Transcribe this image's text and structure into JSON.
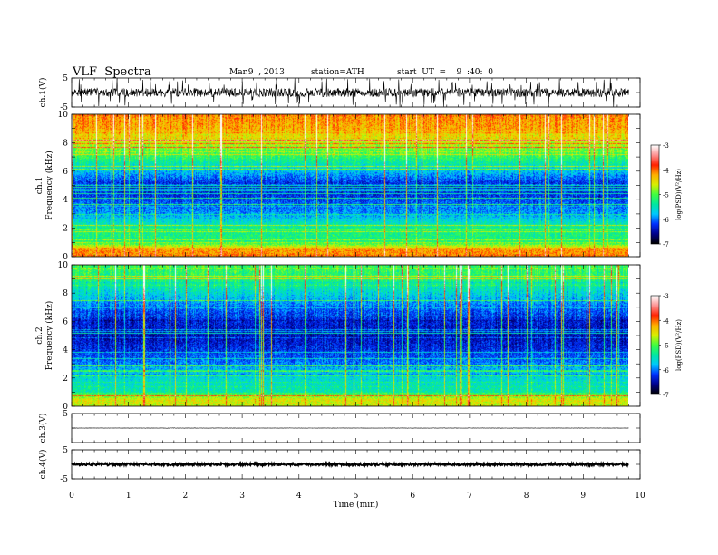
{
  "header": {
    "title": "VLF  Spectra",
    "date": "Mar.9  , 2013",
    "station": "station=ATH",
    "start": "start  UT  =    9  :40:  0"
  },
  "colors": {
    "colormap": [
      "#000000",
      "#00008c",
      "#0030ff",
      "#00c8ff",
      "#00e8a0",
      "#40ff40",
      "#d8f000",
      "#ffb000",
      "#ff2000",
      "#ff9090",
      "#ffffff"
    ],
    "trace": "#000000",
    "axes": "#000000"
  },
  "chart_data": [
    {
      "type": "line",
      "ylabel": "ch.1(V)",
      "ylim": [
        -5,
        5
      ],
      "yticks": [
        "5",
        "-5"
      ],
      "description_values": {
        "baseline": 0,
        "amplitude_typical": 1.5,
        "spike_max": 5
      }
    },
    {
      "type": "heatmap",
      "ylabel_channel": "ch.1",
      "ylabel": "Frequency  (kHz)",
      "ylim": [
        0,
        10
      ],
      "yticks": [
        "0",
        "2",
        "4",
        "6",
        "8",
        "10"
      ],
      "colorbar": {
        "label": "log(PSD)(V²/Hz)",
        "range": [
          -7,
          -3
        ],
        "ticks": [
          "-3",
          "-4",
          "-5",
          "-6",
          "-7"
        ]
      },
      "profile_log_psd": [
        {
          "f": 0.5,
          "v": -4.2
        },
        {
          "f": 1.0,
          "v": -5.3
        },
        {
          "f": 2.0,
          "v": -5.4
        },
        {
          "f": 3.0,
          "v": -6.0
        },
        {
          "f": 4.0,
          "v": -6.3
        },
        {
          "f": 5.0,
          "v": -6.5
        },
        {
          "f": 6.0,
          "v": -5.9
        },
        {
          "f": 7.0,
          "v": -5.3
        },
        {
          "f": 8.0,
          "v": -4.8
        },
        {
          "f": 9.0,
          "v": -4.4
        },
        {
          "f": 10.0,
          "v": -4.3
        }
      ]
    },
    {
      "type": "heatmap",
      "ylabel_channel": "ch.2",
      "ylabel": "Frequency  (kHz)",
      "ylim": [
        0,
        10
      ],
      "yticks": [
        "0",
        "2",
        "4",
        "6",
        "8",
        "10"
      ],
      "colorbar": {
        "label": "log(PSD)(V²/Hz)",
        "range": [
          -7,
          -3
        ],
        "ticks": [
          "-3",
          "-4",
          "-5",
          "-6",
          "-7"
        ]
      },
      "profile_log_psd": [
        {
          "f": 0.5,
          "v": -4.6
        },
        {
          "f": 1.0,
          "v": -5.5
        },
        {
          "f": 2.0,
          "v": -5.7
        },
        {
          "f": 3.0,
          "v": -6.1
        },
        {
          "f": 4.0,
          "v": -6.4
        },
        {
          "f": 5.0,
          "v": -6.6
        },
        {
          "f": 6.0,
          "v": -6.5
        },
        {
          "f": 7.0,
          "v": -6.2
        },
        {
          "f": 8.0,
          "v": -5.8
        },
        {
          "f": 9.0,
          "v": -5.4
        },
        {
          "f": 10.0,
          "v": -5.3
        }
      ]
    },
    {
      "type": "line",
      "ylabel": "ch.3(V)",
      "ylim": [
        -5,
        5
      ],
      "yticks": [
        "5"
      ],
      "description_values": {
        "baseline": 0,
        "amplitude_typical": 0.05
      }
    },
    {
      "type": "line",
      "ylabel": "ch.4(V)",
      "ylim": [
        -5,
        5
      ],
      "yticks": [
        "5",
        "-5"
      ],
      "xlabel": "Time  (min)",
      "xlim": [
        0,
        10
      ],
      "xticks": [
        "0",
        "1",
        "2",
        "3",
        "4",
        "5",
        "6",
        "7",
        "8",
        "9",
        "10"
      ],
      "description_values": {
        "baseline": 0,
        "amplitude_typical": 0.4
      }
    }
  ],
  "data_extent_min": 9.8
}
